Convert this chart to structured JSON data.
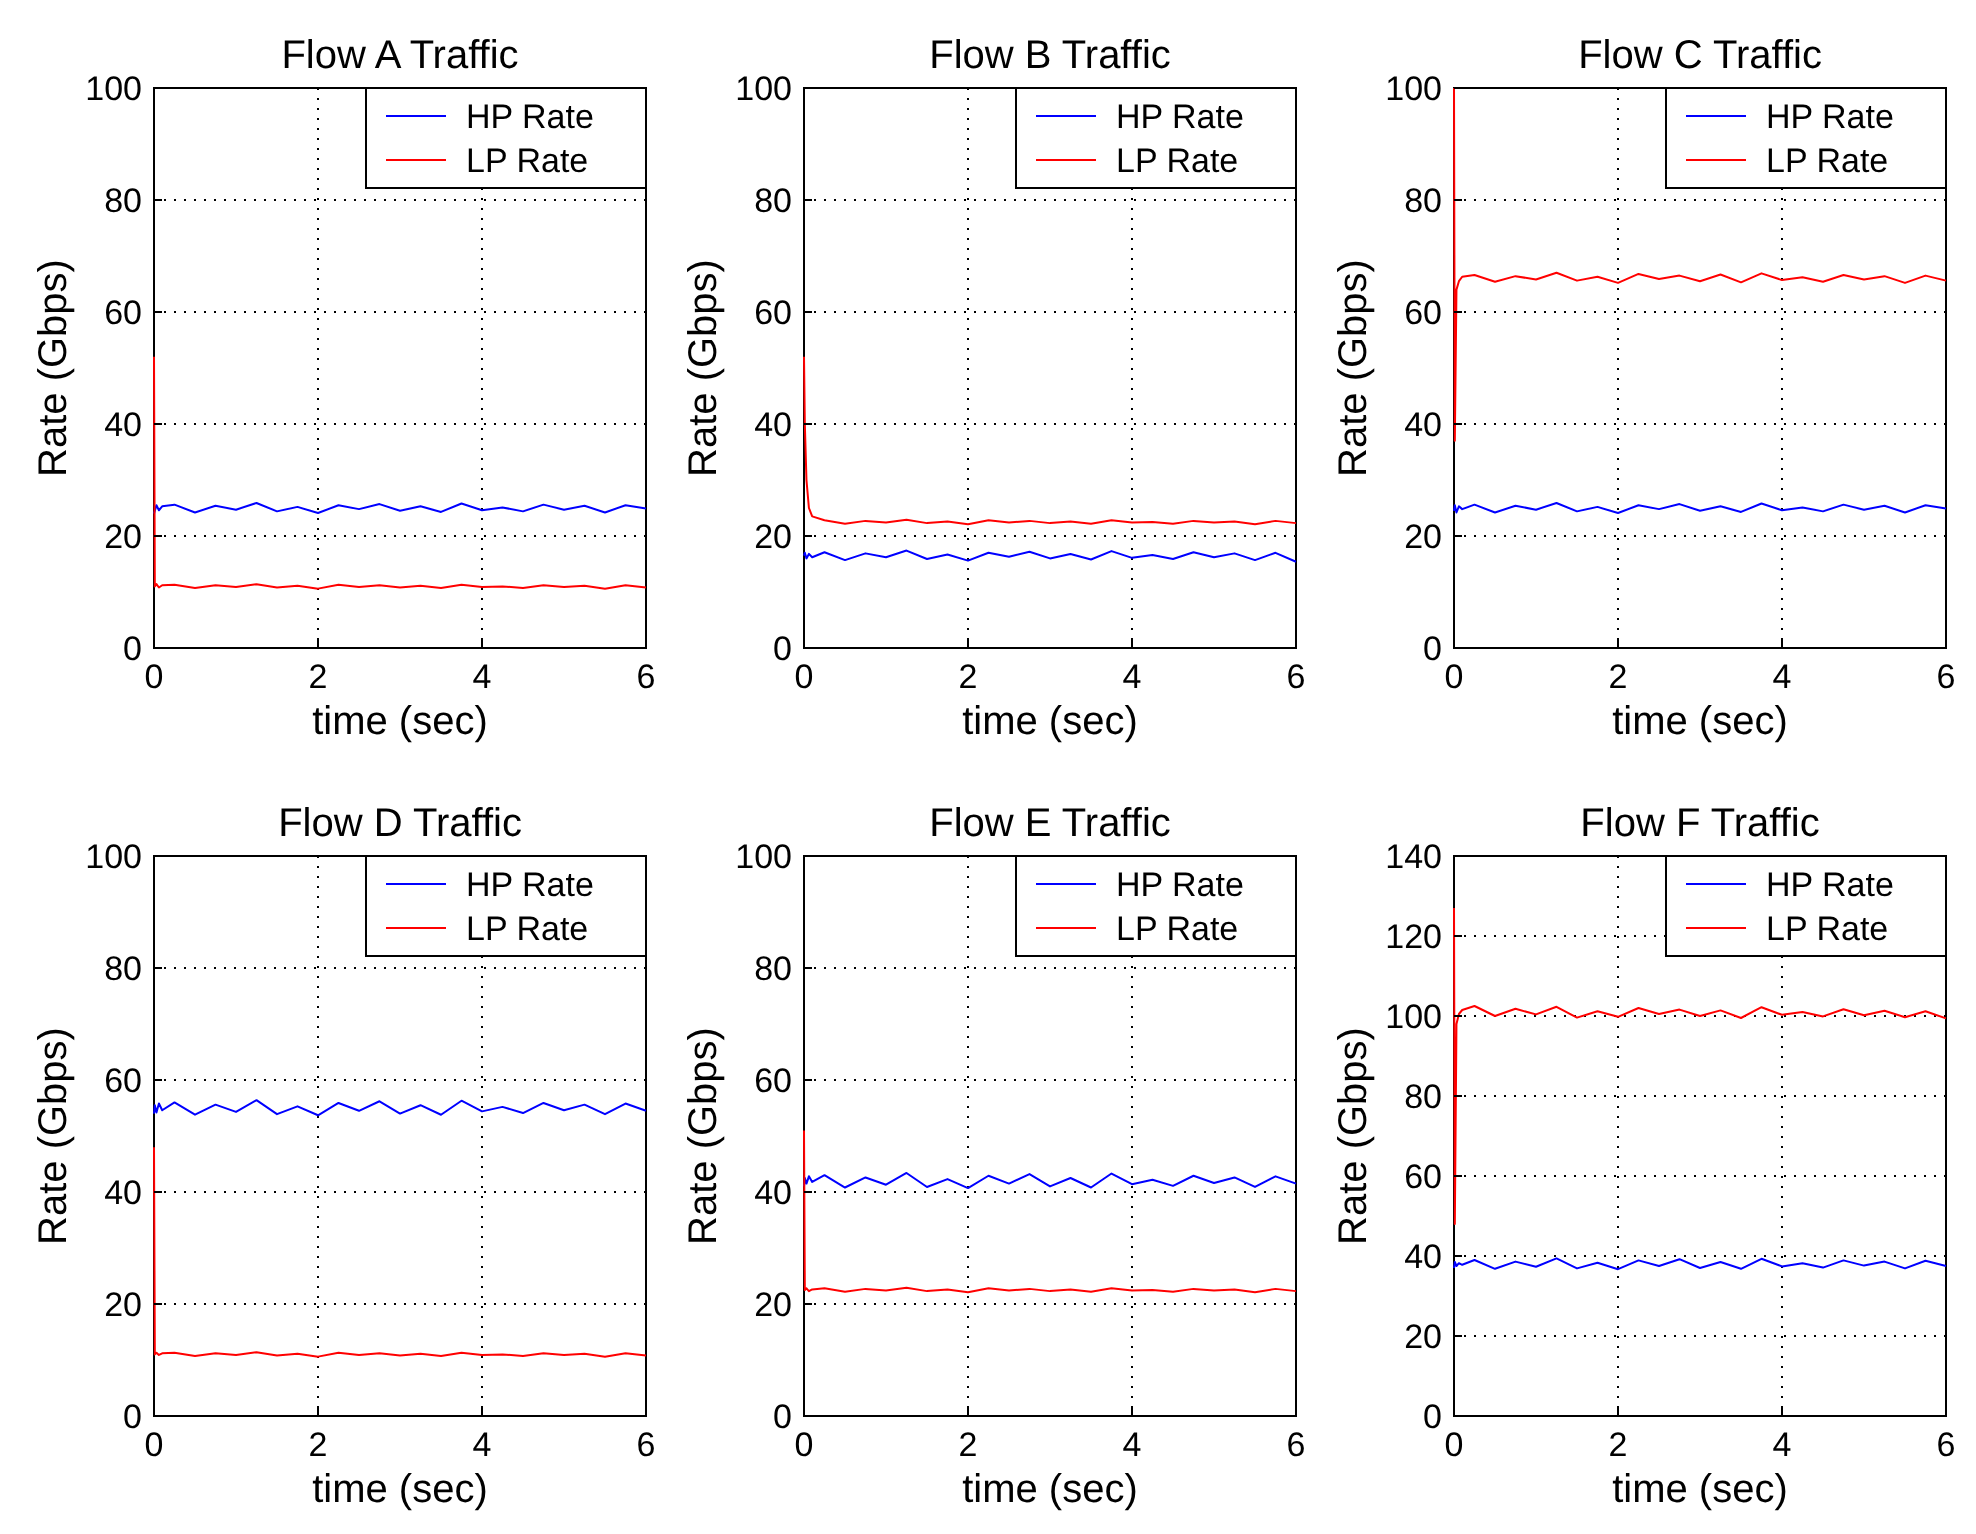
{
  "chart_data": [
    {
      "type": "line",
      "title": "Flow A Traffic",
      "xlabel": "time (sec)",
      "ylabel": "Rate (Gbps)",
      "x": [
        0,
        0.01,
        0.03,
        0.06,
        0.1,
        0.25,
        0.5,
        0.75,
        1,
        1.25,
        1.5,
        1.75,
        2,
        2.25,
        2.5,
        2.75,
        3,
        3.25,
        3.5,
        3.75,
        4,
        4.25,
        4.5,
        4.75,
        5,
        5.25,
        5.5,
        5.75,
        6
      ],
      "xlim": [
        0,
        6
      ],
      "xticks": [
        0,
        2,
        4,
        6
      ],
      "ylim": [
        0,
        100
      ],
      "yticks": [
        0,
        20,
        40,
        60,
        80,
        100
      ],
      "grid": true,
      "legend": "top right",
      "series": [
        {
          "name": "HP Rate",
          "color": "#0000ff",
          "values": [
            24,
            24.5,
            25.5,
            24.6,
            25.3,
            25.6,
            24.2,
            25.4,
            24.7,
            25.9,
            24.4,
            25.2,
            24.1,
            25.5,
            24.8,
            25.7,
            24.5,
            25.3,
            24.3,
            25.8,
            24.6,
            25.1,
            24.4,
            25.6,
            24.7,
            25.4,
            24.2,
            25.5,
            24.9
          ]
        },
        {
          "name": "LP Rate",
          "color": "#ff0000",
          "values": [
            52,
            11,
            11.4,
            10.8,
            11.2,
            11.3,
            10.7,
            11.2,
            10.9,
            11.4,
            10.8,
            11.1,
            10.6,
            11.3,
            10.9,
            11.2,
            10.8,
            11.1,
            10.7,
            11.3,
            10.9,
            11,
            10.7,
            11.2,
            10.9,
            11.1,
            10.6,
            11.2,
            10.8
          ]
        }
      ]
    },
    {
      "type": "line",
      "title": "Flow B Traffic",
      "xlabel": "time (sec)",
      "ylabel": "Rate (Gbps)",
      "x": [
        0,
        0.01,
        0.03,
        0.06,
        0.1,
        0.25,
        0.5,
        0.75,
        1,
        1.25,
        1.5,
        1.75,
        2,
        2.25,
        2.5,
        2.75,
        3,
        3.25,
        3.5,
        3.75,
        4,
        4.25,
        4.5,
        4.75,
        5,
        5.25,
        5.5,
        5.75,
        6
      ],
      "xlim": [
        0,
        6
      ],
      "xticks": [
        0,
        2,
        4,
        6
      ],
      "ylim": [
        0,
        100
      ],
      "yticks": [
        0,
        20,
        40,
        60,
        80,
        100
      ],
      "grid": true,
      "legend": "top right",
      "series": [
        {
          "name": "HP Rate",
          "color": "#0000ff",
          "values": [
            16.5,
            17,
            16,
            16.8,
            16.2,
            17.1,
            15.7,
            16.9,
            16.2,
            17.4,
            15.9,
            16.7,
            15.6,
            17,
            16.3,
            17.2,
            16,
            16.8,
            15.8,
            17.3,
            16.1,
            16.6,
            15.9,
            17.1,
            16.2,
            16.9,
            15.7,
            17,
            15.4
          ]
        },
        {
          "name": "LP Rate",
          "color": "#ff0000",
          "values": [
            52,
            40,
            30,
            25,
            23.5,
            22.8,
            22.2,
            22.7,
            22.4,
            22.9,
            22.3,
            22.6,
            22.1,
            22.8,
            22.4,
            22.7,
            22.3,
            22.6,
            22.2,
            22.8,
            22.4,
            22.5,
            22.2,
            22.7,
            22.4,
            22.6,
            22.1,
            22.7,
            22.3
          ]
        }
      ]
    },
    {
      "type": "line",
      "title": "Flow C Traffic",
      "xlabel": "time (sec)",
      "ylabel": "Rate (Gbps)",
      "x": [
        0,
        0.01,
        0.03,
        0.06,
        0.1,
        0.25,
        0.5,
        0.75,
        1,
        1.25,
        1.5,
        1.75,
        2,
        2.25,
        2.5,
        2.75,
        3,
        3.25,
        3.5,
        3.75,
        4,
        4.25,
        4.5,
        4.75,
        5,
        5.25,
        5.5,
        5.75,
        6
      ],
      "xlim": [
        0,
        6
      ],
      "xticks": [
        0,
        2,
        4,
        6
      ],
      "ylim": [
        0,
        100
      ],
      "yticks": [
        0,
        20,
        40,
        60,
        80,
        100
      ],
      "grid": true,
      "legend": "top right",
      "series": [
        {
          "name": "HP Rate",
          "color": "#0000ff",
          "values": [
            24.5,
            25.5,
            24.2,
            25.3,
            24.8,
            25.6,
            24.2,
            25.4,
            24.7,
            25.9,
            24.4,
            25.2,
            24.1,
            25.5,
            24.8,
            25.7,
            24.5,
            25.3,
            24.3,
            25.8,
            24.6,
            25.1,
            24.4,
            25.6,
            24.7,
            25.4,
            24.2,
            25.5,
            24.9
          ]
        },
        {
          "name": "LP Rate",
          "color": "#ff0000",
          "values": [
            100,
            37,
            64,
            65.5,
            66.3,
            66.6,
            65.4,
            66.4,
            65.8,
            67,
            65.6,
            66.3,
            65.2,
            66.8,
            65.9,
            66.5,
            65.5,
            66.7,
            65.3,
            66.9,
            65.7,
            66.2,
            65.4,
            66.6,
            65.8,
            66.4,
            65.2,
            66.5,
            65.6
          ]
        }
      ]
    },
    {
      "type": "line",
      "title": "Flow D Traffic",
      "xlabel": "time (sec)",
      "ylabel": "Rate (Gbps)",
      "x": [
        0,
        0.01,
        0.03,
        0.06,
        0.1,
        0.25,
        0.5,
        0.75,
        1,
        1.25,
        1.5,
        1.75,
        2,
        2.25,
        2.5,
        2.75,
        3,
        3.25,
        3.5,
        3.75,
        4,
        4.25,
        4.5,
        4.75,
        5,
        5.25,
        5.5,
        5.75,
        6
      ],
      "xlim": [
        0,
        6
      ],
      "xticks": [
        0,
        2,
        4,
        6
      ],
      "ylim": [
        0,
        100
      ],
      "yticks": [
        0,
        20,
        40,
        60,
        80,
        100
      ],
      "grid": true,
      "legend": "top right",
      "series": [
        {
          "name": "HP Rate",
          "color": "#0000ff",
          "values": [
            54,
            55.5,
            54.2,
            55.8,
            54.6,
            56,
            53.8,
            55.6,
            54.3,
            56.4,
            53.9,
            55.3,
            53.7,
            55.9,
            54.5,
            56.2,
            54,
            55.5,
            53.8,
            56.3,
            54.4,
            55.2,
            54.1,
            55.9,
            54.6,
            55.6,
            53.9,
            55.8,
            54.5
          ]
        },
        {
          "name": "LP Rate",
          "color": "#ff0000",
          "values": [
            48,
            11,
            11.3,
            10.9,
            11.2,
            11.3,
            10.7,
            11.2,
            10.9,
            11.4,
            10.8,
            11.1,
            10.6,
            11.3,
            10.9,
            11.2,
            10.8,
            11.1,
            10.7,
            11.3,
            10.9,
            11,
            10.7,
            11.2,
            10.9,
            11.1,
            10.6,
            11.2,
            10.8
          ]
        }
      ]
    },
    {
      "type": "line",
      "title": "Flow E Traffic",
      "xlabel": "time (sec)",
      "ylabel": "Rate (Gbps)",
      "x": [
        0,
        0.01,
        0.03,
        0.06,
        0.1,
        0.25,
        0.5,
        0.75,
        1,
        1.25,
        1.5,
        1.75,
        2,
        2.25,
        2.5,
        2.75,
        3,
        3.25,
        3.5,
        3.75,
        4,
        4.25,
        4.5,
        4.75,
        5,
        5.25,
        5.5,
        5.75,
        6
      ],
      "xlim": [
        0,
        6
      ],
      "xticks": [
        0,
        2,
        4,
        6
      ],
      "ylim": [
        0,
        100
      ],
      "yticks": [
        0,
        20,
        40,
        60,
        80,
        100
      ],
      "grid": true,
      "legend": "top right",
      "series": [
        {
          "name": "HP Rate",
          "color": "#0000ff",
          "values": [
            41,
            42.5,
            41.5,
            42.8,
            41.8,
            43,
            40.8,
            42.6,
            41.3,
            43.4,
            40.9,
            42.3,
            40.7,
            42.9,
            41.5,
            43.2,
            41,
            42.5,
            40.8,
            43.3,
            41.4,
            42.2,
            41.1,
            42.9,
            41.6,
            42.6,
            40.9,
            42.8,
            41.5
          ]
        },
        {
          "name": "LP Rate",
          "color": "#ff0000",
          "values": [
            51,
            22.5,
            22.8,
            22.3,
            22.6,
            22.8,
            22.2,
            22.7,
            22.4,
            22.9,
            22.3,
            22.6,
            22.1,
            22.8,
            22.4,
            22.7,
            22.3,
            22.6,
            22.2,
            22.8,
            22.4,
            22.5,
            22.2,
            22.7,
            22.4,
            22.6,
            22.1,
            22.7,
            22.3
          ]
        }
      ]
    },
    {
      "type": "line",
      "title": "Flow F Traffic",
      "xlabel": "time (sec)",
      "ylabel": "Rate (Gbps)",
      "x": [
        0,
        0.01,
        0.03,
        0.06,
        0.1,
        0.25,
        0.5,
        0.75,
        1,
        1.25,
        1.5,
        1.75,
        2,
        2.25,
        2.5,
        2.75,
        3,
        3.25,
        3.5,
        3.75,
        4,
        4.25,
        4.5,
        4.75,
        5,
        5.25,
        5.5,
        5.75,
        6
      ],
      "xlim": [
        0,
        6
      ],
      "xticks": [
        0,
        2,
        4,
        6
      ],
      "ylim": [
        0,
        140
      ],
      "yticks": [
        0,
        20,
        40,
        60,
        80,
        100,
        120,
        140
      ],
      "grid": true,
      "legend": "top right",
      "series": [
        {
          "name": "HP Rate",
          "color": "#0000ff",
          "values": [
            37,
            38.5,
            37.5,
            38.2,
            37.8,
            39,
            36.8,
            38.6,
            37.3,
            39.4,
            36.9,
            38.3,
            36.7,
            38.9,
            37.5,
            39.2,
            37,
            38.5,
            36.8,
            39.3,
            37.4,
            38.2,
            37.1,
            38.9,
            37.6,
            38.6,
            36.9,
            38.8,
            37.5
          ]
        },
        {
          "name": "LP Rate",
          "color": "#ff0000",
          "values": [
            127,
            48,
            98,
            100.5,
            101.5,
            102.5,
            100,
            101.8,
            100.4,
            102.3,
            99.6,
            101.2,
            99.8,
            102,
            100.5,
            101.6,
            100,
            101.4,
            99.5,
            102.2,
            100.3,
            101,
            99.9,
            101.7,
            100.2,
            101.3,
            99.7,
            101.2,
            99.4
          ]
        }
      ]
    }
  ]
}
